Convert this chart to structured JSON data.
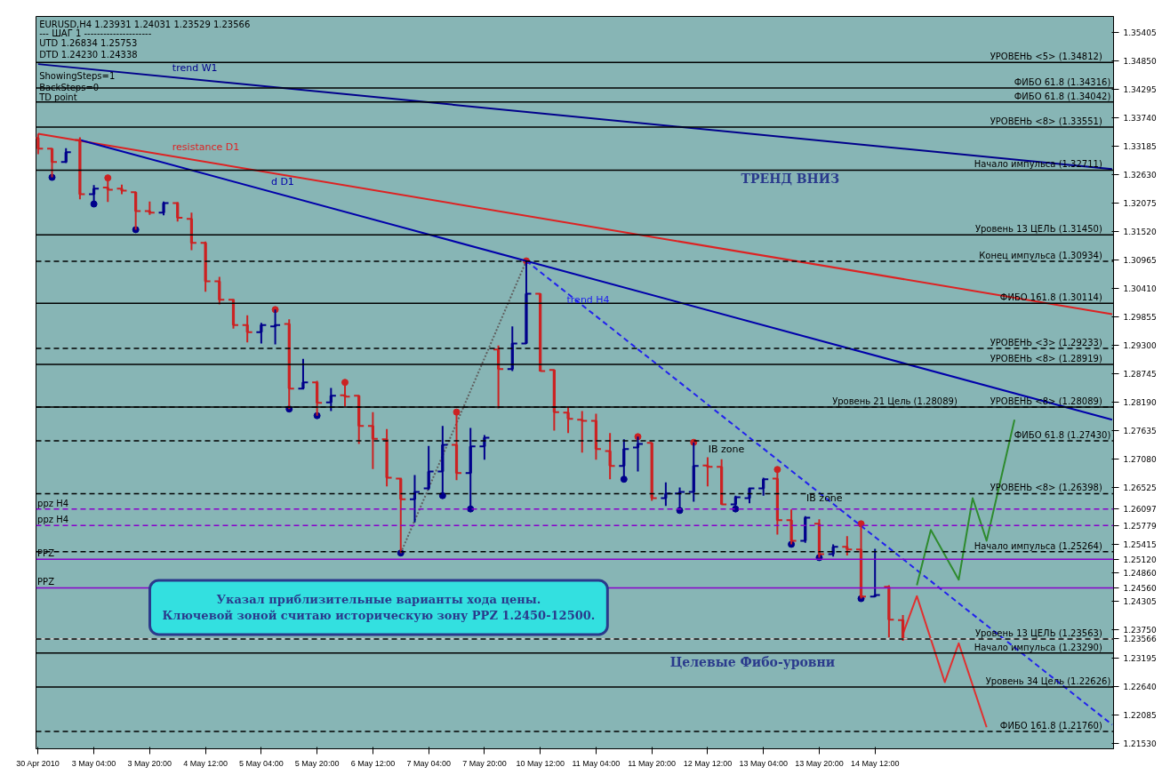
{
  "chart_data": {
    "type": "candlestick",
    "title": "EURUSD,H4  1.23931 1.24031 1.23529 1.23566",
    "categories": [
      "30 Apr 2010",
      null,
      null,
      null,
      "3 May 04:00",
      null,
      null,
      null,
      "3 May 20:00",
      null,
      null,
      null,
      "4 May 12:00",
      null,
      null,
      null,
      "5 May 04:00",
      null,
      null,
      null,
      "5 May 20:00",
      null,
      null,
      null,
      "6 May 12:00",
      null,
      null,
      null,
      "7 May 04:00",
      null,
      null,
      null,
      "7 May 20:00",
      null,
      null,
      null,
      "10 May 12:00",
      null,
      null,
      null,
      "11 May 04:00",
      null,
      null,
      null,
      "11 May 20:00",
      null,
      null,
      null,
      "12 May 12:00",
      null,
      null,
      null,
      "13 May 04:00",
      null,
      null,
      null,
      "13 May 20:00",
      null,
      null,
      null,
      "14 May 12:00",
      null,
      null,
      null,
      null,
      null,
      null,
      null,
      null,
      null,
      null,
      null,
      null,
      null,
      null,
      null,
      null,
      null
    ],
    "ohlc": [
      [
        1.3334,
        1.3342,
        1.3302,
        1.3313
      ],
      [
        1.3313,
        1.3313,
        1.3257,
        1.3287
      ],
      [
        1.3287,
        1.3314,
        1.3285,
        1.3306
      ],
      [
        1.333,
        1.3335,
        1.3214,
        1.3224
      ],
      [
        1.3224,
        1.3242,
        1.3205,
        1.3235
      ],
      [
        1.3237,
        1.3256,
        1.3209,
        1.3233
      ],
      [
        1.3235,
        1.3243,
        1.3224,
        1.3231
      ],
      [
        1.3228,
        1.3228,
        1.3155,
        1.3191
      ],
      [
        1.3191,
        1.321,
        1.3184,
        1.3188
      ],
      [
        1.3188,
        1.321,
        1.3183,
        1.3207
      ],
      [
        1.3207,
        1.3209,
        1.3171,
        1.3178
      ],
      [
        1.3176,
        1.3188,
        1.3115,
        1.3129
      ],
      [
        1.3129,
        1.3132,
        1.3034,
        1.3054
      ],
      [
        1.3054,
        1.3063,
        1.3009,
        1.3018
      ],
      [
        1.3018,
        1.302,
        1.2962,
        1.2969
      ],
      [
        1.2969,
        1.2988,
        1.2935,
        1.2955
      ],
      [
        1.2955,
        1.2973,
        1.2933,
        1.2969
      ],
      [
        1.2966,
        1.2999,
        1.2931,
        1.2969
      ],
      [
        1.2971,
        1.298,
        1.2805,
        1.2845
      ],
      [
        1.2845,
        1.2903,
        1.2843,
        1.2857
      ],
      [
        1.2857,
        1.286,
        1.2792,
        1.2817
      ],
      [
        1.2818,
        1.2846,
        1.2801,
        1.2831
      ],
      [
        1.2832,
        1.2857,
        1.281,
        1.2829
      ],
      [
        1.2831,
        1.2831,
        1.2737,
        1.2772
      ],
      [
        1.2772,
        1.2799,
        1.2688,
        1.2747
      ],
      [
        1.2746,
        1.2766,
        1.2654,
        1.2671
      ],
      [
        1.2669,
        1.2671,
        1.2524,
        1.2629
      ],
      [
        1.2629,
        1.2676,
        1.2584,
        1.2643
      ],
      [
        1.265,
        1.2733,
        1.2647,
        1.2683
      ],
      [
        1.2683,
        1.2772,
        1.2636,
        1.2735
      ],
      [
        1.2735,
        1.2799,
        1.2666,
        1.268
      ],
      [
        1.268,
        1.2768,
        1.261,
        1.2732
      ],
      [
        1.2732,
        1.2754,
        1.2706,
        1.2749
      ],
      [
        1.2921,
        1.2929,
        1.2806,
        1.2883
      ],
      [
        1.2883,
        1.2966,
        1.2879,
        1.2933
      ],
      [
        1.2933,
        1.3094,
        1.2933,
        1.303
      ],
      [
        1.303,
        1.303,
        1.2878,
        1.2879
      ],
      [
        1.2881,
        1.2881,
        1.2763,
        1.2799
      ],
      [
        1.2798,
        1.281,
        1.2758,
        1.2786
      ],
      [
        1.2784,
        1.2801,
        1.272,
        1.2782
      ],
      [
        1.2782,
        1.2796,
        1.2706,
        1.2727
      ],
      [
        1.2723,
        1.2758,
        1.2668,
        1.2694
      ],
      [
        1.2694,
        1.2746,
        1.2668,
        1.2727
      ],
      [
        1.273,
        1.2751,
        1.2683,
        1.2737
      ],
      [
        1.2739,
        1.2739,
        1.2626,
        1.2631
      ],
      [
        1.2631,
        1.2662,
        1.2616,
        1.264
      ],
      [
        1.264,
        1.2652,
        1.2607,
        1.2643
      ],
      [
        1.2643,
        1.274,
        1.2624,
        1.2694
      ],
      [
        1.2695,
        1.2711,
        1.2654,
        1.2692
      ],
      [
        1.2692,
        1.2707,
        1.2619,
        1.2619
      ],
      [
        1.2619,
        1.2636,
        1.261,
        1.2633
      ],
      [
        1.2631,
        1.2652,
        1.2621,
        1.265
      ],
      [
        1.265,
        1.2671,
        1.2636,
        1.2668
      ],
      [
        1.2669,
        1.2687,
        1.256,
        1.2588
      ],
      [
        1.2588,
        1.2609,
        1.2541,
        1.2548
      ],
      [
        1.2548,
        1.2596,
        1.2544,
        1.2593
      ],
      [
        1.2581,
        1.259,
        1.2515,
        1.2522
      ],
      [
        1.2522,
        1.2541,
        1.2517,
        1.2536
      ],
      [
        1.2536,
        1.2557,
        1.2519,
        1.2531
      ],
      [
        1.2531,
        1.2581,
        1.2435,
        1.2439
      ],
      [
        1.2439,
        1.2532,
        1.2439,
        1.2442
      ],
      [
        1.2458,
        1.2461,
        1.2359,
        1.2394
      ],
      [
        1.23931,
        1.24031,
        1.23529,
        1.23566
      ],
      null,
      null,
      null,
      null,
      null,
      null,
      null,
      null,
      null,
      null,
      null,
      null,
      null,
      null,
      null
    ],
    "colors": [
      "#cc2222",
      "#cc2222",
      "#00008b",
      "#cc2222",
      "#00008b",
      "#cc2222",
      "#cc2222",
      "#cc2222",
      "#cc2222",
      "#00008b",
      "#cc2222",
      "#cc2222",
      "#cc2222",
      "#cc2222",
      "#cc2222",
      "#cc2222",
      "#00008b",
      "#00008b",
      "#cc2222",
      "#00008b",
      "#cc2222",
      "#00008b",
      "#cc2222",
      "#cc2222",
      "#cc2222",
      "#cc2222",
      "#cc2222",
      "#00008b",
      "#00008b",
      "#00008b",
      "#cc2222",
      "#00008b",
      "#00008b",
      "#cc2222",
      "#00008b",
      "#00008b",
      "#cc2222",
      "#cc2222",
      "#cc2222",
      "#cc2222",
      "#cc2222",
      "#cc2222",
      "#00008b",
      "#00008b",
      "#cc2222",
      "#00008b",
      "#00008b",
      "#00008b",
      "#cc2222",
      "#cc2222",
      "#00008b",
      "#00008b",
      "#00008b",
      "#cc2222",
      "#cc2222",
      "#00008b",
      "#cc2222",
      "#00008b",
      "#cc2222",
      "#cc2222",
      "#00008b",
      "#cc2222",
      "#cc2222",
      null,
      null,
      null,
      null,
      null,
      null,
      null,
      null,
      null,
      null,
      null,
      null,
      null,
      null,
      null
    ],
    "series": [
      {
        "type": "scatter",
        "marker": "circle",
        "color": "#cc2222",
        "values": [
          null,
          null,
          null,
          null,
          null,
          1.3256,
          null,
          null,
          null,
          null,
          null,
          null,
          null,
          null,
          null,
          null,
          null,
          1.2999,
          null,
          null,
          null,
          null,
          1.2857,
          null,
          null,
          null,
          null,
          null,
          null,
          null,
          1.2799,
          null,
          null,
          null,
          null,
          1.3094,
          null,
          null,
          null,
          null,
          null,
          null,
          null,
          1.2751,
          null,
          null,
          null,
          1.274,
          null,
          null,
          null,
          null,
          null,
          1.2687,
          null,
          null,
          null,
          null,
          null,
          1.2581,
          null,
          null,
          null,
          null,
          null,
          null,
          null,
          null,
          null,
          null,
          null,
          null,
          null,
          null,
          null,
          null,
          null,
          null
        ]
      },
      {
        "type": "scatter",
        "marker": "circle",
        "color": "#00008b",
        "values": [
          null,
          1.3257,
          null,
          null,
          1.3205,
          null,
          null,
          1.3155,
          null,
          null,
          null,
          null,
          null,
          null,
          null,
          null,
          null,
          null,
          1.2805,
          null,
          1.2792,
          null,
          null,
          null,
          null,
          null,
          1.2524,
          null,
          null,
          1.2636,
          null,
          1.261,
          null,
          null,
          null,
          null,
          null,
          null,
          null,
          null,
          null,
          null,
          1.2668,
          null,
          null,
          null,
          1.2607,
          null,
          null,
          null,
          1.261,
          null,
          null,
          null,
          1.2541,
          null,
          1.2515,
          null,
          null,
          1.2435,
          null,
          null,
          null,
          null,
          null,
          null,
          null,
          null,
          null,
          null,
          null,
          null,
          null,
          null,
          null,
          null,
          null,
          null
        ]
      },
      {
        "type": "line",
        "name": "trend W1",
        "color": "#00008b",
        "line_style": "solid",
        "values": [
          1.3478,
          null,
          null,
          null,
          null,
          null,
          null,
          null,
          null,
          null,
          null,
          null,
          null,
          null,
          null,
          null,
          null,
          null,
          null,
          null,
          null,
          null,
          null,
          null,
          null,
          null,
          null,
          null,
          null,
          null,
          null,
          null,
          null,
          null,
          null,
          null,
          null,
          null,
          null,
          null,
          null,
          null,
          null,
          null,
          null,
          null,
          null,
          null,
          null,
          null,
          null,
          null,
          null,
          null,
          null,
          null,
          null,
          null,
          null,
          null,
          null,
          null,
          null,
          null,
          null,
          null,
          null,
          null,
          null,
          null,
          null,
          null,
          null,
          null,
          null,
          null,
          null,
          1.3273
        ]
      },
      {
        "type": "line",
        "name": "resistance D1",
        "color": "#dd2222",
        "line_style": "solid",
        "values": [
          1.3342,
          null,
          null,
          null,
          null,
          null,
          null,
          null,
          null,
          null,
          null,
          null,
          null,
          null,
          null,
          null,
          null,
          null,
          null,
          null,
          null,
          null,
          null,
          null,
          null,
          null,
          null,
          null,
          null,
          null,
          null,
          null,
          null,
          null,
          null,
          null,
          null,
          null,
          null,
          null,
          null,
          null,
          null,
          null,
          null,
          null,
          null,
          null,
          null,
          null,
          null,
          null,
          null,
          null,
          null,
          null,
          null,
          null,
          null,
          null,
          null,
          null,
          null,
          null,
          null,
          null,
          null,
          null,
          null,
          null,
          null,
          null,
          null,
          null,
          null,
          null,
          null,
          1.299
        ]
      },
      {
        "type": "line",
        "name": "d D1",
        "color": "#0000aa",
        "line_style": "solid",
        "values": [
          null,
          null,
          null,
          1.333,
          null,
          null,
          null,
          null,
          null,
          null,
          null,
          null,
          null,
          null,
          null,
          null,
          null,
          null,
          null,
          null,
          null,
          null,
          null,
          null,
          null,
          null,
          null,
          null,
          null,
          null,
          null,
          null,
          null,
          null,
          null,
          null,
          null,
          null,
          null,
          null,
          null,
          null,
          null,
          null,
          null,
          null,
          null,
          null,
          null,
          null,
          null,
          null,
          null,
          null,
          null,
          null,
          null,
          null,
          null,
          null,
          null,
          null,
          null,
          null,
          null,
          null,
          null,
          null,
          null,
          null,
          null,
          null,
          null,
          null,
          null,
          null,
          null,
          1.2784
        ]
      },
      {
        "type": "line",
        "name": "trend H4",
        "color": "#2222ee",
        "line_style": "dashed",
        "values": [
          null,
          null,
          null,
          null,
          null,
          null,
          null,
          null,
          null,
          null,
          null,
          null,
          null,
          null,
          null,
          null,
          null,
          null,
          null,
          null,
          null,
          null,
          null,
          null,
          null,
          null,
          null,
          null,
          null,
          null,
          null,
          null,
          null,
          null,
          null,
          1.3094,
          null,
          null,
          null,
          null,
          null,
          null,
          null,
          null,
          null,
          null,
          null,
          null,
          null,
          null,
          null,
          null,
          null,
          null,
          null,
          null,
          null,
          null,
          null,
          null,
          null,
          null,
          null,
          null,
          null,
          null,
          null,
          null,
          null,
          null,
          null,
          null,
          null,
          null,
          null,
          null,
          null,
          1.2189
        ]
      },
      {
        "type": "line",
        "color": "#606060",
        "line_style": "dotted",
        "values": [
          null,
          null,
          null,
          null,
          null,
          null,
          null,
          null,
          null,
          null,
          null,
          null,
          null,
          null,
          null,
          null,
          null,
          null,
          null,
          null,
          null,
          null,
          null,
          null,
          null,
          null,
          1.2524,
          null,
          null,
          null,
          null,
          null,
          null,
          null,
          null,
          1.3094,
          null,
          null,
          null,
          null,
          null,
          null,
          null,
          null,
          null,
          null,
          null,
          null,
          null,
          null,
          null,
          null,
          null,
          null,
          null,
          null,
          null,
          null,
          null,
          null,
          null,
          null,
          null,
          null,
          null,
          null,
          null,
          null,
          null,
          null,
          null,
          null,
          null,
          null,
          null,
          null,
          null,
          null
        ]
      },
      {
        "type": "line",
        "color": "#2e8b2e",
        "line_style": "solid",
        "values": [
          null,
          null,
          null,
          null,
          null,
          null,
          null,
          null,
          null,
          null,
          null,
          null,
          null,
          null,
          null,
          null,
          null,
          null,
          null,
          null,
          null,
          null,
          null,
          null,
          null,
          null,
          null,
          null,
          null,
          null,
          null,
          null,
          null,
          null,
          null,
          null,
          null,
          null,
          null,
          null,
          null,
          null,
          null,
          null,
          null,
          null,
          null,
          null,
          null,
          null,
          null,
          null,
          null,
          null,
          null,
          null,
          null,
          null,
          null,
          null,
          null,
          null,
          null,
          1.2461,
          1.2569,
          null,
          1.2472,
          1.2631,
          1.2548,
          null,
          1.2784,
          null,
          null,
          null,
          null,
          null,
          null,
          null
        ]
      },
      {
        "type": "line",
        "color": "#e03030",
        "line_style": "solid",
        "values": [
          null,
          null,
          null,
          null,
          null,
          null,
          null,
          null,
          null,
          null,
          null,
          null,
          null,
          null,
          null,
          null,
          null,
          null,
          null,
          null,
          null,
          null,
          null,
          null,
          null,
          null,
          null,
          null,
          null,
          null,
          null,
          null,
          null,
          null,
          null,
          null,
          null,
          null,
          null,
          null,
          null,
          null,
          null,
          null,
          null,
          null,
          null,
          null,
          null,
          null,
          null,
          null,
          null,
          null,
          null,
          null,
          null,
          null,
          null,
          null,
          null,
          null,
          1.2366,
          1.244,
          null,
          1.2272,
          1.2348,
          null,
          1.2184,
          null,
          null,
          null,
          null,
          null,
          null,
          null,
          null,
          null
        ]
      }
    ],
    "ylim": [
      1.2142,
      1.3571
    ],
    "yticks": [
      1.35405,
      {
        "value": 1.3485,
        "label": "1.34850"
      },
      1.34295,
      {
        "value": 1.3374,
        "label": "1.33740"
      },
      1.33185,
      {
        "value": 1.3263,
        "label": "1.32630"
      },
      1.32075,
      {
        "value": 1.3152,
        "label": "1.31520"
      },
      1.30965,
      {
        "value": 1.3041,
        "label": "1.30410"
      },
      1.29855,
      {
        "value": 1.293,
        "label": "1.29300"
      },
      1.28745,
      {
        "value": 1.2819,
        "label": "1.28190"
      },
      1.27635,
      {
        "value": 1.2708,
        "label": "1.27080"
      },
      1.26525,
      1.26097,
      1.25779,
      1.25415,
      {
        "value": 1.2512,
        "label": "1.25120"
      },
      {
        "value": 1.2486,
        "label": "1.24860"
      },
      {
        "value": 1.2456,
        "label": "1.24560"
      },
      1.24305,
      {
        "value": 1.2375,
        "label": "1.23750"
      },
      1.23566,
      1.23195,
      {
        "value": 1.2264,
        "label": "1.22640"
      },
      1.22085,
      {
        "value": 1.2153,
        "label": "1.21530"
      }
    ],
    "ref_lines": [
      {
        "axis": "y",
        "value": 1.34812,
        "label": "УРОВЕНЬ <5>    (1.34812)",
        "color": "#000000",
        "line_style": "solid"
      },
      {
        "axis": "y",
        "value": 1.34316,
        "label": "ФИБО 61.8 (1.34316)",
        "color": "#000000",
        "line_style": "solid"
      },
      {
        "axis": "y",
        "value": 1.34042,
        "label": "ФИБО 61.8 (1.34042)",
        "color": "#000000",
        "line_style": "solid"
      },
      {
        "axis": "y",
        "value": 1.33551,
        "label": "УРОВЕНЬ <8>    (1.33551)",
        "color": "#000000",
        "line_style": "solid"
      },
      {
        "axis": "y",
        "value": 1.32711,
        "label": "Начало импульса    (1.32711)",
        "color": "#000000",
        "line_style": "solid"
      },
      {
        "axis": "y",
        "value": 1.3145,
        "label": "Уровень 13 ЦЕЛЬ    (1.31450)",
        "color": "#000000",
        "line_style": "solid"
      },
      {
        "axis": "y",
        "value": 1.30934,
        "label": "Конец импульса    (1.30934)",
        "color": "#000000",
        "line_style": "dashed"
      },
      {
        "axis": "y",
        "value": 1.30114,
        "label": "ФИБО 161.8    (1.30114)",
        "color": "#000000",
        "line_style": "solid"
      },
      {
        "axis": "y",
        "value": 1.29233,
        "label": "УРОВЕНЬ <3>    (1.29233)",
        "color": "#000000",
        "line_style": "dashed"
      },
      {
        "axis": "y",
        "value": 1.28919,
        "label": "УРОВЕНЬ <8>    (1.28919)",
        "color": "#000000",
        "line_style": "solid"
      },
      {
        "axis": "y",
        "value": 1.28089,
        "label": "УРОВЕНЬ <8>    (1.28089)",
        "color": "#000000",
        "line_style": "dashed"
      },
      {
        "axis": "y",
        "value": 1.28089,
        "label": "Уровень 21 Цель (1.28089)",
        "color": "#000000",
        "line_style": "solid"
      },
      {
        "axis": "y",
        "value": 1.2743,
        "label": "ФИБО 61.8 (1.27430)",
        "color": "#000000",
        "line_style": "dashed"
      },
      {
        "axis": "y",
        "value": 1.26398,
        "label": "УРОВЕНЬ <8>    (1.26398)",
        "color": "#000000",
        "line_style": "dashed"
      },
      {
        "axis": "y",
        "value": 1.26097,
        "label": "ppz H4",
        "color": "#8800cc",
        "line_style": "dashed"
      },
      {
        "axis": "y",
        "value": 1.25779,
        "label": "ppz H4",
        "color": "#8800cc",
        "line_style": "dashed"
      },
      {
        "axis": "y",
        "value": 1.25264,
        "label": "Начало импульса    (1.25264)",
        "color": "#000000",
        "line_style": "dashed"
      },
      {
        "axis": "y",
        "value": 1.2512,
        "label": "PPZ",
        "color": "#8800cc",
        "line_style": "solid"
      },
      {
        "axis": "y",
        "value": 1.2456,
        "label": "PPZ",
        "color": "#8800cc",
        "line_style": "solid"
      },
      {
        "axis": "y",
        "value": 1.23566,
        "color": "#c8c8c8",
        "line_style": "solid"
      },
      {
        "axis": "y",
        "value": 1.23563,
        "label": "Уровень 13 ЦЕЛЬ    (1.23563)",
        "color": "#000000",
        "line_style": "dashed"
      },
      {
        "axis": "y",
        "value": 1.2329,
        "label": "Начало импульса    (1.23290)",
        "color": "#000000",
        "line_style": "solid"
      },
      {
        "axis": "y",
        "value": 1.22626,
        "label": "Уровень 34 Цель (1.22626)",
        "color": "#000000",
        "line_style": "solid"
      },
      {
        "axis": "y",
        "value": 1.2176,
        "label": "ФИБО 161.8    (1.21760)",
        "color": "#000000",
        "line_style": "dashed"
      }
    ],
    "annotations": [
      "---   ШАГ 1   ---------------------",
      "UTD 1.26834  1.25753",
      "DTD 1.24230  1.24338",
      "ShowingSteps=1",
      "BackSteps=0",
      "TD point",
      "ТРЕНД ВНИЗ",
      "IB zone",
      "IB zone",
      "Указал приблизительные варианты хода цены.\nКлючевой зоной считаю историческую зону PPZ 1.2450-12500.",
      "Целевые Фибо-уровни"
    ]
  }
}
